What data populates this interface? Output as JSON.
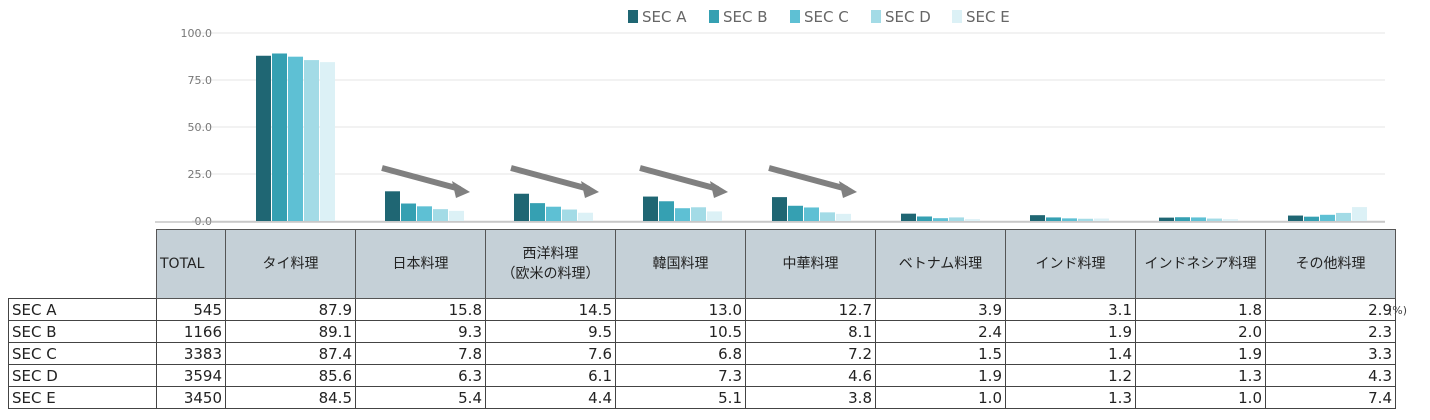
{
  "chart_data": {
    "type": "bar",
    "categories": [
      "タイ料理",
      "日本料理",
      "西洋料理（欧米の料理）",
      "韓国料理",
      "中華料理",
      "ベトナム料理",
      "インド料理",
      "インドネシア料理",
      "その他料理"
    ],
    "series": [
      {
        "name": "SEC A",
        "total": "545",
        "values": [
          87.9,
          15.8,
          14.5,
          13.0,
          12.7,
          3.9,
          3.1,
          1.8,
          2.9
        ],
        "color": "#1f6673"
      },
      {
        "name": "SEC B",
        "total": "1166",
        "values": [
          89.1,
          9.3,
          9.5,
          10.5,
          8.1,
          2.4,
          1.9,
          2.0,
          2.3
        ],
        "color": "#35a0b2"
      },
      {
        "name": "SEC C",
        "total": "3383",
        "values": [
          87.4,
          7.8,
          7.6,
          6.8,
          7.2,
          1.5,
          1.4,
          1.9,
          3.3
        ],
        "color": "#5ec0d4"
      },
      {
        "name": "SEC D",
        "total": "3594",
        "values": [
          85.6,
          6.3,
          6.1,
          7.3,
          4.6,
          1.9,
          1.2,
          1.3,
          4.3
        ],
        "color": "#a3dbe6"
      },
      {
        "name": "SEC E",
        "total": "3450",
        "values": [
          84.5,
          5.4,
          4.4,
          5.1,
          3.8,
          1.0,
          1.3,
          1.0,
          7.4
        ],
        "color": "#dcf1f6"
      }
    ],
    "ylim": [
      0,
      100
    ],
    "yticks": [
      "0.0",
      "25.0",
      "50.0",
      "75.0",
      "100.0"
    ],
    "grid": true,
    "legend": "top",
    "annotations": "downward-arrows over 日本料理, 西洋料理, 韓国料理, 中華料理",
    "arrow_color": "#808080"
  },
  "table": {
    "total_header": "TOTAL",
    "headers": [
      "タイ料理",
      "日本料理",
      "西洋料理\n（欧米の料理）",
      "韓国料理",
      "中華料理",
      "ベトナム料理",
      "インド料理",
      "インドネシア料理",
      "その他料理"
    ],
    "rows": [
      {
        "label": "SEC A",
        "cells": [
          "545",
          "87.9",
          "15.8",
          "14.5",
          "13.0",
          "12.7",
          "3.9",
          "3.1",
          "1.8",
          "2.9"
        ]
      },
      {
        "label": "SEC B",
        "cells": [
          "1166",
          "89.1",
          "9.3",
          "9.5",
          "10.5",
          "8.1",
          "2.4",
          "1.9",
          "2.0",
          "2.3"
        ]
      },
      {
        "label": "SEC C",
        "cells": [
          "3383",
          "87.4",
          "7.8",
          "7.6",
          "6.8",
          "7.2",
          "1.5",
          "1.4",
          "1.9",
          "3.3"
        ]
      },
      {
        "label": "SEC D",
        "cells": [
          "3594",
          "85.6",
          "6.3",
          "6.1",
          "7.3",
          "4.6",
          "1.9",
          "1.2",
          "1.3",
          "4.3"
        ]
      },
      {
        "label": "SEC E",
        "cells": [
          "3450",
          "84.5",
          "5.4",
          "4.4",
          "5.1",
          "3.8",
          "1.0",
          "1.3",
          "1.0",
          "7.4"
        ]
      }
    ],
    "unit": "(%)"
  }
}
